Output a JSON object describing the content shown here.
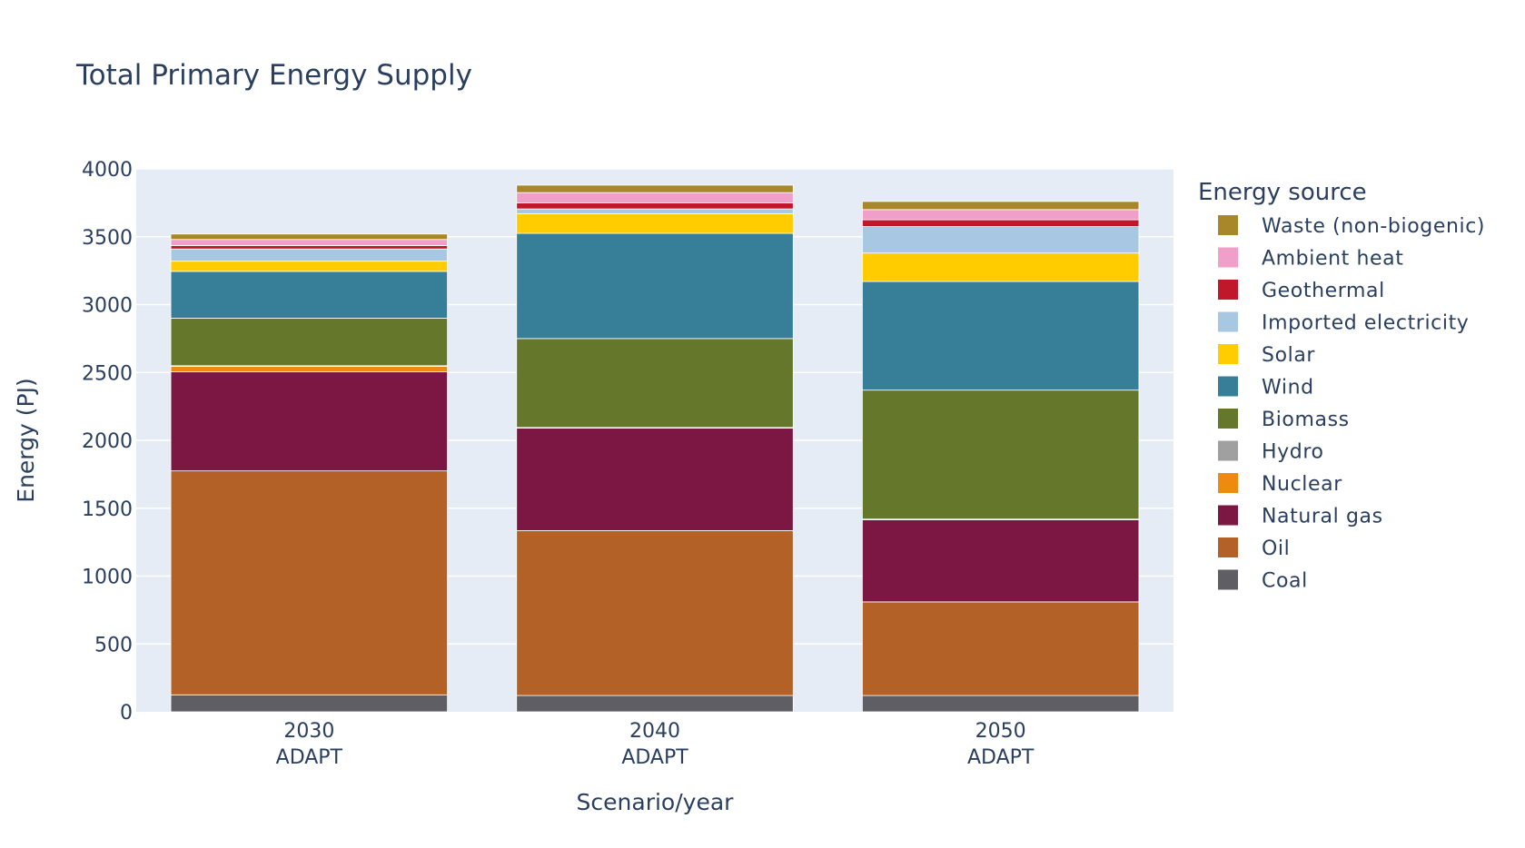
{
  "chart_data": {
    "type": "bar",
    "stacked": true,
    "title": "Total Primary Energy Supply",
    "xlabel": "Scenario/year",
    "ylabel": "Energy (PJ)",
    "ylim": [
      0,
      4000
    ],
    "yticks": [
      0,
      500,
      1000,
      1500,
      2000,
      2500,
      3000,
      3500,
      4000
    ],
    "grid": true,
    "legend_title": "Energy source",
    "legend_position": "right",
    "categories": [
      {
        "year": "2030",
        "scenario": "ADAPT"
      },
      {
        "year": "2040",
        "scenario": "ADAPT"
      },
      {
        "year": "2050",
        "scenario": "ADAPT"
      }
    ],
    "series": [
      {
        "name": "Coal",
        "color": "#5e5e64",
        "values": [
          125,
          120,
          120
        ]
      },
      {
        "name": "Oil",
        "color": "#b36126",
        "values": [
          1650,
          1215,
          690
        ]
      },
      {
        "name": "Natural gas",
        "color": "#7c1744",
        "values": [
          730,
          755,
          605
        ]
      },
      {
        "name": "Nuclear",
        "color": "#ee8a0f",
        "values": [
          40,
          0,
          0
        ]
      },
      {
        "name": "Hydro",
        "color": "#a0a0a0",
        "values": [
          5,
          5,
          5
        ]
      },
      {
        "name": "Biomass",
        "color": "#64772b",
        "values": [
          350,
          655,
          950
        ]
      },
      {
        "name": "Wind",
        "color": "#377e99",
        "values": [
          345,
          775,
          800
        ]
      },
      {
        "name": "Solar",
        "color": "#ffcc00",
        "values": [
          75,
          145,
          210
        ]
      },
      {
        "name": "Imported electricity",
        "color": "#a7c7e2",
        "values": [
          90,
          35,
          195
        ]
      },
      {
        "name": "Geothermal",
        "color": "#c0172b",
        "values": [
          25,
          45,
          50
        ]
      },
      {
        "name": "Ambient heat",
        "color": "#f0a0c8",
        "values": [
          45,
          75,
          75
        ]
      },
      {
        "name": "Waste (non-biogenic)",
        "color": "#a8872a",
        "values": [
          40,
          55,
          60
        ]
      }
    ]
  },
  "colors": {
    "plot_bg": "#e5ecf6",
    "grid": "#ffffff",
    "text": "#2a3f5f"
  }
}
